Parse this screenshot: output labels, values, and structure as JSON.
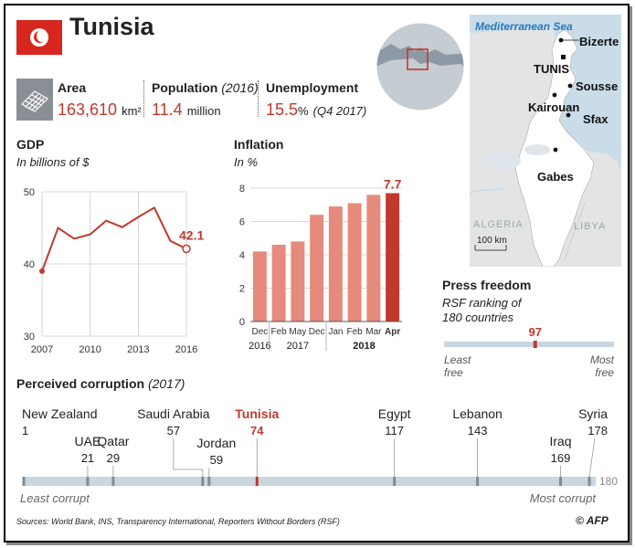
{
  "header": {
    "title": "Tunisia"
  },
  "stats": {
    "area": {
      "label": "Area",
      "value": "163,610",
      "unit": "km²"
    },
    "population": {
      "label": "Population",
      "note": "(2016)",
      "value": "11.4",
      "unit": "million"
    },
    "unemployment": {
      "label": "Unemployment",
      "value": "15.5",
      "unit": "%",
      "note": "(Q4 2017)"
    }
  },
  "map": {
    "sea": "Mediterranean Sea",
    "cities": [
      "Bizerte",
      "TUNIS",
      "Sousse",
      "Kairouan",
      "Sfax",
      "Gabes"
    ],
    "countries": [
      "ALGERIA",
      "LIBYA"
    ],
    "scale": "100 km"
  },
  "chart_data": [
    {
      "type": "line",
      "title": "GDP",
      "subtitle": "In billions of $",
      "x": [
        2007,
        2008,
        2009,
        2010,
        2011,
        2012,
        2013,
        2014,
        2015,
        2016
      ],
      "values": [
        39,
        45,
        43.5,
        44.1,
        46,
        45.1,
        46.5,
        47.8,
        43.2,
        42.1
      ],
      "x_ticks": [
        "2007",
        "2010",
        "2013",
        "2016"
      ],
      "y_ticks": [
        "30",
        "40",
        "50"
      ],
      "ylim": [
        30,
        50
      ],
      "annotation": "42.1",
      "grid": true
    },
    {
      "type": "bar",
      "title": "Inflation",
      "subtitle": "In %",
      "categories": [
        "Dec",
        "Feb",
        "May",
        "Dec",
        "Jan",
        "Feb",
        "Mar",
        "Apr"
      ],
      "values": [
        4.2,
        4.6,
        4.8,
        6.4,
        6.9,
        7.1,
        7.6,
        7.7
      ],
      "year_labels": [
        "2016",
        "2017",
        "2018"
      ],
      "y_ticks": [
        "0",
        "2",
        "4",
        "6",
        "8"
      ],
      "ylim": [
        0,
        8
      ],
      "annotation": "7.7",
      "colors": {
        "bar": "#e58a7c",
        "highlight": "#c0392b"
      }
    },
    {
      "type": "scale",
      "title": "Press freedom",
      "subtitle": "RSF ranking of 180 countries",
      "value": 97,
      "max": 180,
      "left_label": "Least free",
      "right_label": "Most free"
    },
    {
      "type": "scale",
      "title": "Perceived corruption",
      "title_note": "(2017)",
      "max": 180,
      "max_label": "180",
      "left_label": "Least corrupt",
      "right_label": "Most corrupt",
      "countries": [
        {
          "name": "New Zealand",
          "rank": 1
        },
        {
          "name": "UAE",
          "rank": 21
        },
        {
          "name": "Qatar",
          "rank": 29
        },
        {
          "name": "Saudi Arabia",
          "rank": 57
        },
        {
          "name": "Jordan",
          "rank": 59
        },
        {
          "name": "Tunisia",
          "rank": 74
        },
        {
          "name": "Egypt",
          "rank": 117
        },
        {
          "name": "Lebanon",
          "rank": 143
        },
        {
          "name": "Iraq",
          "rank": 169
        },
        {
          "name": "Syria",
          "rank": 178
        }
      ]
    }
  ],
  "footer": {
    "sources": "Sources: World Bank, INS, Transparency International, Reporters Without Borders (RSF)",
    "credit": "© AFP"
  }
}
